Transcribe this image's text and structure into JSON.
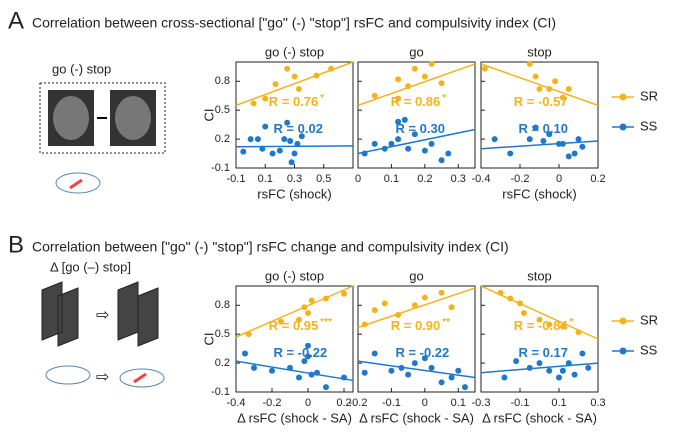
{
  "figure": [
    {
      "letter": "A",
      "title": "Correlation between cross-sectional [\"go\" (-) \"stop\"] rsFC and compulsivity index (CI)",
      "icon_label": "go (-) stop"
    },
    {
      "letter": "B",
      "title": "Correlation between [\"go\" (-) \"stop\"] rsFC change and compulsivity index (CI)",
      "icon_label": "Δ [go (–) stop]"
    }
  ],
  "chart_data": [
    {
      "type": "scatter",
      "title": "go (-) stop",
      "ylabel": "CI",
      "xlabel": "rsFC (shock)",
      "xlim": [
        -0.1,
        0.7
      ],
      "xticks": [
        -0.1,
        0.1,
        0.3,
        0.5
      ],
      "ylim": [
        -0.1,
        1.0
      ],
      "yticks": [
        -0.1,
        0.2,
        0.5,
        0.8
      ],
      "series": [
        {
          "name": "SR",
          "color": "#f5b21b",
          "x": [
            0.02,
            0.1,
            0.17,
            0.25,
            0.3,
            0.33,
            0.45,
            0.55
          ],
          "values": [
            0.57,
            0.62,
            0.77,
            0.93,
            0.85,
            0.72,
            0.86,
            0.93
          ],
          "fit": [
            0.55,
            1.0
          ],
          "label": "R = 0.76",
          "sig": "*"
        },
        {
          "name": "SS",
          "color": "#1f78c8",
          "x": [
            -0.05,
            0,
            0.05,
            0.08,
            0.1,
            0.15,
            0.2,
            0.23,
            0.27,
            0.3,
            0.32,
            0.35,
            0.25,
            0.28
          ],
          "values": [
            0.07,
            0.2,
            0.2,
            0.1,
            0.33,
            0.05,
            0.08,
            0.2,
            0.18,
            0.05,
            0.15,
            0.23,
            0.37,
            -0.04
          ],
          "fit": [
            0.12,
            0.13
          ],
          "label": "R = 0.02"
        }
      ]
    },
    {
      "type": "scatter",
      "title": "go",
      "xlim": [
        0,
        0.35
      ],
      "xticks": [
        0,
        0.1,
        0.2,
        0.3
      ],
      "ylim": [
        -0.1,
        1.0
      ],
      "yticks": [
        -0.1,
        0.2,
        0.5,
        0.8
      ],
      "series": [
        {
          "name": "SR",
          "color": "#f5b21b",
          "x": [
            0.05,
            0.12,
            0.15,
            0.17,
            0.2,
            0.22,
            0.25,
            0.12
          ],
          "values": [
            0.65,
            0.82,
            0.75,
            0.93,
            0.85,
            0.98,
            0.78,
            0.62
          ],
          "fit": [
            0.55,
            0.98
          ],
          "label": "R = 0.86",
          "sig": "*"
        },
        {
          "name": "SS",
          "color": "#1f78c8",
          "x": [
            0.02,
            0.05,
            0.08,
            0.1,
            0.12,
            0.12,
            0.14,
            0.15,
            0.17,
            0.2,
            0.22,
            0.25,
            0.27
          ],
          "values": [
            0.05,
            0.15,
            0.1,
            0.15,
            0.2,
            0.38,
            0.4,
            0.1,
            0.25,
            0.08,
            0.15,
            -0.02,
            0.05
          ],
          "fit": [
            0.05,
            0.3
          ],
          "label": "R = 0.30"
        }
      ]
    },
    {
      "type": "scatter",
      "title": "stop",
      "xlabel": "rsFC (shock)",
      "xlim": [
        -0.4,
        0.2
      ],
      "xticks": [
        -0.4,
        -0.2,
        0,
        0.2
      ],
      "ylim": [
        -0.1,
        1.0
      ],
      "yticks": [
        -0.1,
        0.2,
        0.5,
        0.8
      ],
      "series": [
        {
          "name": "SR",
          "color": "#f5b21b",
          "x": [
            -0.38,
            -0.15,
            -0.12,
            -0.1,
            -0.05,
            -0.02,
            0.02,
            0.05
          ],
          "values": [
            0.93,
            0.98,
            0.85,
            0.72,
            0.72,
            0.8,
            0.63,
            0.72
          ],
          "fit": [
            0.98,
            0.55
          ],
          "label": "R = -0.57"
        },
        {
          "name": "SS",
          "color": "#1f78c8",
          "x": [
            -0.33,
            -0.25,
            -0.15,
            -0.12,
            -0.08,
            -0.05,
            0,
            0.02,
            0.05,
            0.08,
            0.1,
            0.12
          ],
          "values": [
            0.2,
            0.05,
            0.2,
            0.32,
            0.18,
            0.25,
            0.15,
            0.15,
            0.02,
            0.05,
            0.2,
            0.12
          ],
          "fit": [
            0.1,
            0.18
          ],
          "label": "R = 0.10"
        }
      ]
    },
    {
      "type": "scatter",
      "title": "go (-) stop",
      "ylabel": "CI",
      "xlabel": "Δ rsFC (shock - SA)",
      "xlim": [
        -0.4,
        0.25
      ],
      "xticks": [
        -0.4,
        -0.2,
        0,
        0.2
      ],
      "ylim": [
        -0.1,
        1.0
      ],
      "yticks": [
        -0.1,
        0.2,
        0.5,
        0.8
      ],
      "series": [
        {
          "name": "SR",
          "color": "#f5b21b",
          "x": [
            -0.33,
            -0.15,
            -0.05,
            -0.02,
            0,
            0.02,
            0.1,
            0.2
          ],
          "values": [
            0.5,
            0.63,
            0.65,
            0.78,
            0.72,
            0.85,
            0.87,
            0.92
          ],
          "fit": [
            0.47,
            1.0
          ],
          "label": "R = 0.95",
          "sig": "***"
        },
        {
          "name": "SS",
          "color": "#1f78c8",
          "x": [
            -0.35,
            -0.3,
            -0.2,
            -0.1,
            -0.05,
            -0.02,
            0,
            0,
            0.02,
            0.05,
            0.1,
            0.2
          ],
          "values": [
            0.3,
            0.15,
            0.12,
            0.15,
            0.05,
            0.22,
            0.38,
            0.27,
            0.08,
            0.1,
            -0.05,
            0.05
          ],
          "fit": [
            0.22,
            0.02
          ],
          "label": "R = -0.22"
        }
      ]
    },
    {
      "type": "scatter",
      "title": "go",
      "xlabel": "Δ rsFC (shock - SA)",
      "xlim": [
        -0.2,
        0.15
      ],
      "xticks": [
        -0.2,
        -0.1,
        0,
        0.1
      ],
      "ylim": [
        -0.1,
        1.0
      ],
      "yticks": [
        -0.1,
        0.2,
        0.5,
        0.8
      ],
      "series": [
        {
          "name": "SR",
          "color": "#f5b21b",
          "x": [
            -0.18,
            -0.15,
            -0.12,
            -0.08,
            -0.03,
            0,
            0.05,
            0.08
          ],
          "values": [
            0.6,
            0.75,
            0.82,
            0.7,
            0.8,
            0.88,
            0.93,
            0.78
          ],
          "fit": [
            0.57,
            0.98
          ],
          "label": "R = 0.90",
          "sig": "**"
        },
        {
          "name": "SS",
          "color": "#1f78c8",
          "x": [
            -0.18,
            -0.15,
            -0.1,
            -0.07,
            -0.05,
            -0.03,
            0,
            0.02,
            0.05,
            0.08,
            0.1,
            0.12
          ],
          "values": [
            0.1,
            0.3,
            0.12,
            0.15,
            0.08,
            0.2,
            0.25,
            0.15,
            0,
            0.05,
            0.12,
            -0.05
          ],
          "fit": [
            0.22,
            0.05
          ],
          "label": "R = -0.22"
        }
      ]
    },
    {
      "type": "scatter",
      "title": "stop",
      "xlabel": "Δ rsFC (shock - SA)",
      "xlim": [
        -0.3,
        0.3
      ],
      "xticks": [
        -0.3,
        -0.1,
        0.1,
        0.3
      ],
      "ylim": [
        -0.1,
        1.0
      ],
      "yticks": [
        -0.1,
        0.2,
        0.5,
        0.8
      ],
      "series": [
        {
          "name": "SR",
          "color": "#f5b21b",
          "x": [
            -0.2,
            -0.15,
            -0.1,
            -0.08,
            0,
            0.05,
            0.12,
            0.2
          ],
          "values": [
            0.93,
            0.87,
            0.82,
            0.72,
            0.65,
            0.6,
            0.58,
            0.52
          ],
          "fit": [
            1.0,
            0.45
          ],
          "label": "R = -0.84",
          "sig": "*"
        },
        {
          "name": "SS",
          "color": "#1f78c8",
          "x": [
            -0.18,
            -0.12,
            -0.05,
            0,
            0.05,
            0.1,
            0.12,
            0.15,
            0.18,
            0.22,
            0.25
          ],
          "values": [
            0.05,
            0.22,
            0.15,
            0.2,
            0.12,
            0.05,
            0.12,
            0.2,
            0.08,
            0.3,
            0.15
          ],
          "fit": [
            0.1,
            0.2
          ],
          "label": "R = 0.17"
        }
      ]
    }
  ]
}
